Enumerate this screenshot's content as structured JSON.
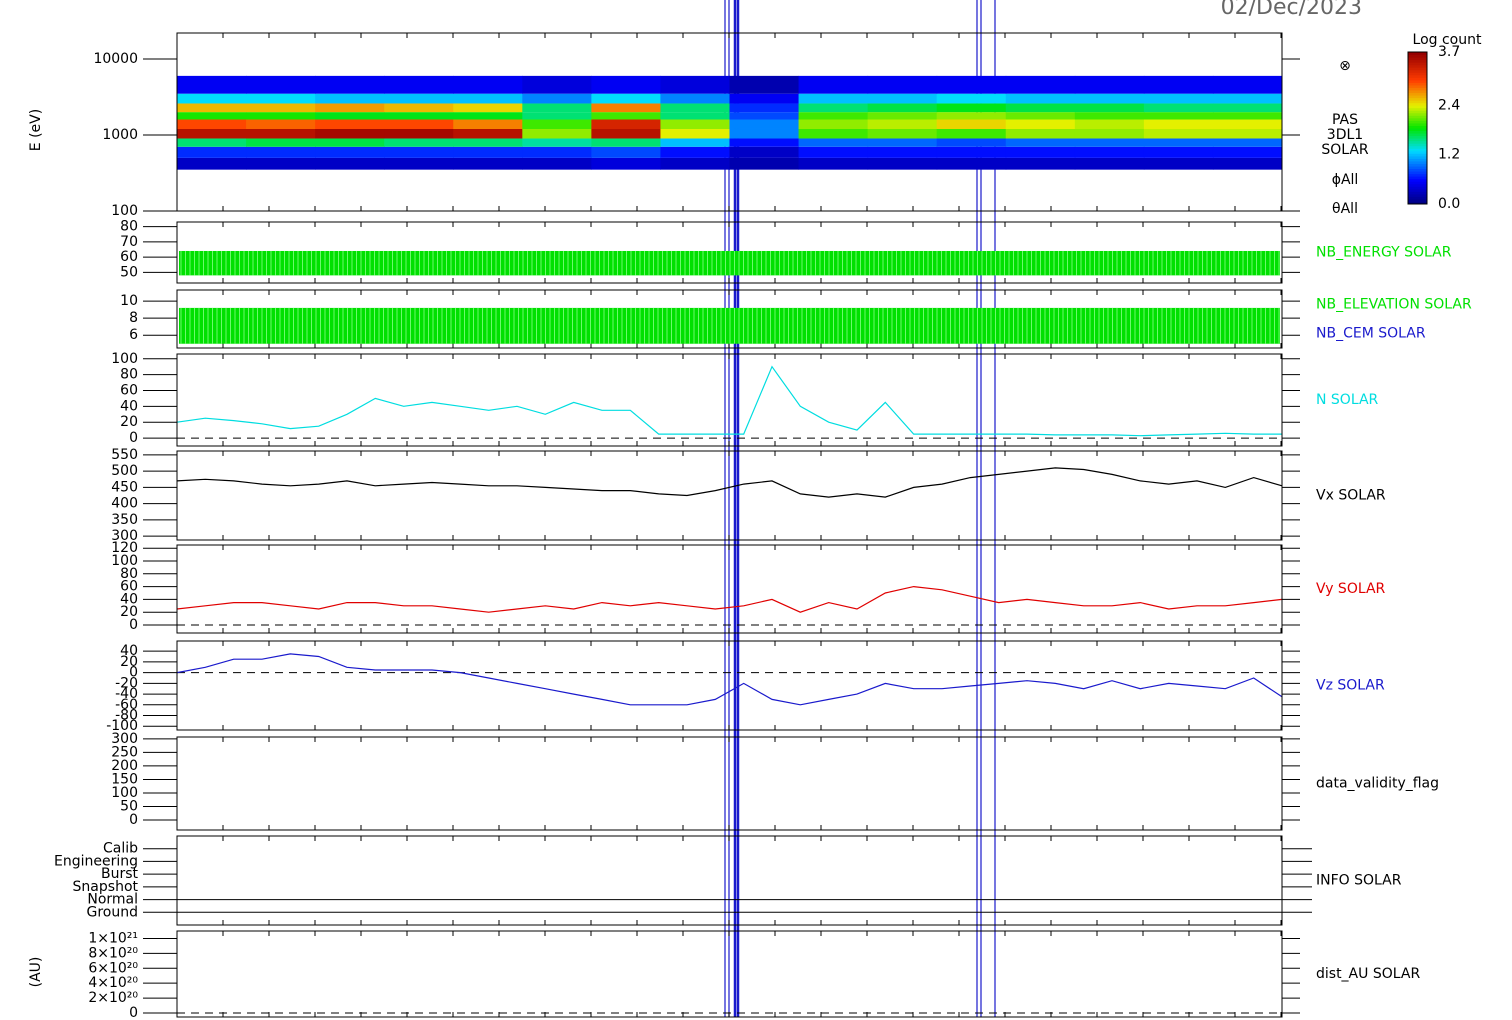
{
  "chart_data": [
    {
      "type": "heatmap",
      "title": "02/Dec/2023",
      "ylabel": "E (eV)",
      "log": true,
      "ylim": [
        100,
        22000
      ],
      "yticks": [
        100,
        1000,
        10000
      ],
      "y_bins": [
        350,
        500,
        700,
        900,
        1200,
        1600,
        2000,
        2600,
        3500,
        6000
      ],
      "z": [
        [
          0.3,
          0.3,
          0.3,
          0.3,
          0.3,
          0.3,
          0.4,
          0.3,
          0.2,
          0.3,
          0.3,
          0.3,
          0.3,
          0.3,
          0.3,
          0.3
        ],
        [
          0.7,
          0.7,
          0.7,
          0.7,
          0.7,
          0.7,
          0.8,
          0.6,
          0.3,
          0.6,
          0.6,
          0.6,
          0.6,
          0.6,
          0.6,
          0.6
        ],
        [
          1.6,
          1.7,
          1.7,
          1.6,
          1.6,
          1.5,
          1.6,
          1.2,
          0.6,
          0.9,
          0.9,
          0.8,
          0.9,
          0.9,
          0.9,
          0.9
        ],
        [
          3.5,
          3.5,
          3.6,
          3.6,
          3.5,
          2.2,
          3.5,
          2.4,
          1.0,
          2.0,
          2.1,
          2.0,
          2.2,
          2.2,
          2.3,
          2.3
        ],
        [
          3.0,
          2.9,
          3.0,
          3.0,
          2.8,
          2.0,
          3.3,
          2.2,
          1.0,
          2.2,
          2.3,
          2.5,
          2.4,
          2.3,
          2.4,
          2.4
        ],
        [
          1.9,
          1.9,
          1.8,
          1.8,
          1.8,
          1.6,
          2.0,
          1.6,
          0.8,
          2.0,
          2.1,
          2.2,
          2.1,
          2.0,
          2.0,
          2.0
        ],
        [
          2.6,
          2.6,
          2.7,
          2.6,
          2.5,
          1.6,
          2.8,
          1.6,
          0.7,
          1.6,
          1.7,
          1.8,
          1.7,
          1.7,
          1.6,
          1.6
        ],
        [
          1.3,
          1.3,
          1.2,
          1.2,
          1.2,
          1.0,
          1.3,
          1.0,
          0.5,
          1.2,
          1.2,
          1.3,
          1.2,
          1.2,
          1.2,
          1.2
        ],
        [
          0.5,
          0.5,
          0.5,
          0.5,
          0.5,
          0.4,
          0.5,
          0.4,
          0.2,
          0.5,
          0.5,
          0.5,
          0.5,
          0.5,
          0.5,
          0.5
        ]
      ],
      "colorbar_label": "Log count",
      "clim": [
        0,
        3.7
      ],
      "cticks": [
        {
          "value": 0,
          "label": "0.0"
        },
        1.2,
        2.4,
        3.7
      ],
      "annotations": [
        "⊗",
        "PAS",
        "3DL1",
        "SOLAR",
        "ϕAll",
        "θAll"
      ]
    },
    {
      "type": "band",
      "ylim": [
        43,
        83
      ],
      "yticks": [
        50,
        60,
        70,
        80
      ],
      "series": [
        {
          "name": "NB_ENERGY SOLAR",
          "color": "#00e000",
          "range": [
            48,
            64
          ]
        }
      ]
    },
    {
      "type": "band",
      "ylim": [
        4.5,
        11.3
      ],
      "yticks": [
        6,
        8,
        10
      ],
      "series": [
        {
          "name": "NB_ELEVATION SOLAR",
          "color": "#00e000",
          "range": [
            5,
            9.2
          ]
        },
        {
          "name": "NB_CEM SOLAR",
          "color": "#1a1acc"
        }
      ]
    },
    {
      "type": "line",
      "ylim": [
        -10,
        106
      ],
      "yticks": [
        0,
        20,
        40,
        60,
        80,
        100
      ],
      "zero_line": true,
      "series": [
        {
          "name": "N SOLAR",
          "color": "#00dde0",
          "values": [
            20,
            25,
            22,
            18,
            12,
            15,
            30,
            50,
            40,
            45,
            40,
            35,
            40,
            30,
            45,
            35,
            35,
            5,
            5,
            5,
            5,
            90,
            40,
            20,
            10,
            45,
            5,
            5,
            5,
            5,
            5,
            4,
            4,
            4,
            3,
            4,
            5,
            6,
            5,
            5
          ]
        }
      ]
    },
    {
      "type": "line",
      "ylim": [
        288,
        562
      ],
      "yticks": [
        300,
        350,
        400,
        450,
        500,
        550
      ],
      "series": [
        {
          "name": "Vx SOLAR",
          "color": "#000000",
          "values": [
            470,
            475,
            470,
            460,
            455,
            460,
            470,
            455,
            460,
            465,
            460,
            455,
            455,
            450,
            445,
            440,
            440,
            430,
            425,
            440,
            460,
            470,
            430,
            420,
            430,
            420,
            450,
            460,
            480,
            490,
            500,
            510,
            505,
            490,
            470,
            460,
            470,
            450,
            480,
            455
          ]
        }
      ]
    },
    {
      "type": "line",
      "ylim": [
        -12.5,
        125
      ],
      "yticks": [
        0,
        20,
        40,
        60,
        80,
        100,
        120
      ],
      "zero_line": true,
      "series": [
        {
          "name": "Vy SOLAR",
          "color": "#e00000",
          "values": [
            25,
            30,
            35,
            35,
            30,
            25,
            35,
            35,
            30,
            30,
            25,
            20,
            25,
            30,
            25,
            35,
            30,
            35,
            30,
            25,
            30,
            40,
            20,
            35,
            25,
            50,
            60,
            55,
            45,
            35,
            40,
            35,
            30,
            30,
            35,
            25,
            30,
            30,
            35,
            40
          ]
        }
      ]
    },
    {
      "type": "line",
      "ylim": [
        -107,
        59
      ],
      "yticks": [
        -100,
        -80,
        -60,
        -40,
        -20,
        0,
        20,
        40
      ],
      "zero_line": true,
      "series": [
        {
          "name": "Vz SOLAR",
          "color": "#1a1acc",
          "values": [
            0,
            10,
            25,
            25,
            35,
            30,
            10,
            5,
            5,
            5,
            0,
            -10,
            -20,
            -30,
            -40,
            -50,
            -60,
            -60,
            -60,
            -50,
            -20,
            -50,
            -60,
            -50,
            -40,
            -20,
            -30,
            -30,
            -25,
            -20,
            -15,
            -20,
            -30,
            -15,
            -30,
            -20,
            -25,
            -30,
            -10,
            -45
          ]
        }
      ]
    },
    {
      "type": "line",
      "ylim": [
        -37,
        307
      ],
      "yticks": [
        0,
        50,
        100,
        150,
        200,
        250,
        300
      ],
      "series": [
        {
          "name": "data_validity_flag",
          "color": "#000000"
        }
      ]
    },
    {
      "type": "category",
      "categories": [
        "Calib",
        "Engineering",
        "Burst",
        "Snapshot",
        "Normal",
        "Ground"
      ],
      "series": [
        {
          "name": "INFO SOLAR",
          "color": "#000000"
        }
      ]
    },
    {
      "type": "line",
      "ylabel": "(AU)",
      "ylim": [
        -5.4e+19,
        1.1e+21
      ],
      "zero_line": true,
      "yticks": [
        0,
        {
          "value": 2e+20,
          "label": "2×10²⁰"
        },
        {
          "value": 4e+20,
          "label": "4×10²⁰"
        },
        {
          "value": 6e+20,
          "label": "6×10²⁰"
        },
        {
          "value": 8e+20,
          "label": "8×10²⁰"
        },
        {
          "value": 1e+21,
          "label": "1×10²¹"
        }
      ],
      "series": [
        {
          "name": "dist_AU SOLAR",
          "color": "#000000"
        }
      ]
    }
  ]
}
